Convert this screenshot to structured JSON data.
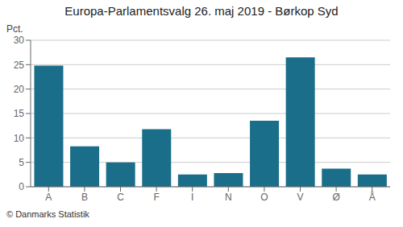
{
  "chart_data": {
    "type": "bar",
    "title": "Europa-Parlamentsvalg 26. maj 2019 - Børkop Syd",
    "categories": [
      "A",
      "B",
      "C",
      "F",
      "I",
      "N",
      "O",
      "V",
      "Ø",
      "Å"
    ],
    "values": [
      24.8,
      8.3,
      5.0,
      11.8,
      2.5,
      2.8,
      13.5,
      26.5,
      3.7,
      2.5
    ],
    "color": "#1a6e8a",
    "ylabel": "Pct.",
    "ylim": [
      0,
      30
    ],
    "yticks": [
      0,
      5,
      10,
      15,
      20,
      25,
      30
    ],
    "grid": true,
    "annotations": [
      "© Danmarks Statistik"
    ]
  }
}
